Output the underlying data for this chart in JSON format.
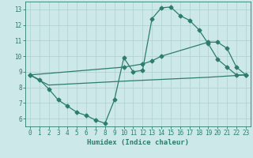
{
  "line1_x": [
    0,
    1,
    2,
    3,
    4,
    5,
    6,
    7,
    8,
    9,
    10,
    11,
    12,
    13,
    14,
    15,
    16,
    17,
    18,
    19,
    20,
    21,
    22,
    23
  ],
  "line1_y": [
    8.8,
    8.5,
    7.9,
    7.2,
    6.8,
    6.4,
    6.2,
    5.9,
    5.7,
    7.2,
    9.9,
    9.0,
    9.1,
    12.4,
    13.1,
    13.15,
    12.6,
    12.3,
    11.7,
    10.8,
    9.8,
    9.3,
    8.8,
    8.8
  ],
  "line2_x": [
    0,
    10,
    12,
    13,
    14,
    19,
    20,
    21,
    22,
    23
  ],
  "line2_y": [
    8.8,
    9.3,
    9.5,
    9.7,
    10.0,
    10.9,
    10.9,
    10.5,
    9.3,
    8.8
  ],
  "line3_x": [
    0,
    1,
    2,
    10,
    19,
    23
  ],
  "line3_y": [
    8.8,
    8.45,
    8.15,
    8.4,
    8.65,
    8.8
  ],
  "color": "#2d7d6e",
  "bg_color": "#cce8e8",
  "grid_color": "#aed0cc",
  "xlabel": "Humidex (Indice chaleur)",
  "ylim": [
    5.5,
    13.5
  ],
  "xlim": [
    -0.5,
    23.5
  ],
  "yticks": [
    6,
    7,
    8,
    9,
    10,
    11,
    12,
    13
  ],
  "xticks": [
    0,
    1,
    2,
    3,
    4,
    5,
    6,
    7,
    8,
    9,
    10,
    11,
    12,
    13,
    14,
    15,
    16,
    17,
    18,
    19,
    20,
    21,
    22,
    23
  ],
  "xlabel_fontsize": 6.5,
  "tick_fontsize": 5.5,
  "marker_size": 2.5,
  "line_width": 0.9
}
